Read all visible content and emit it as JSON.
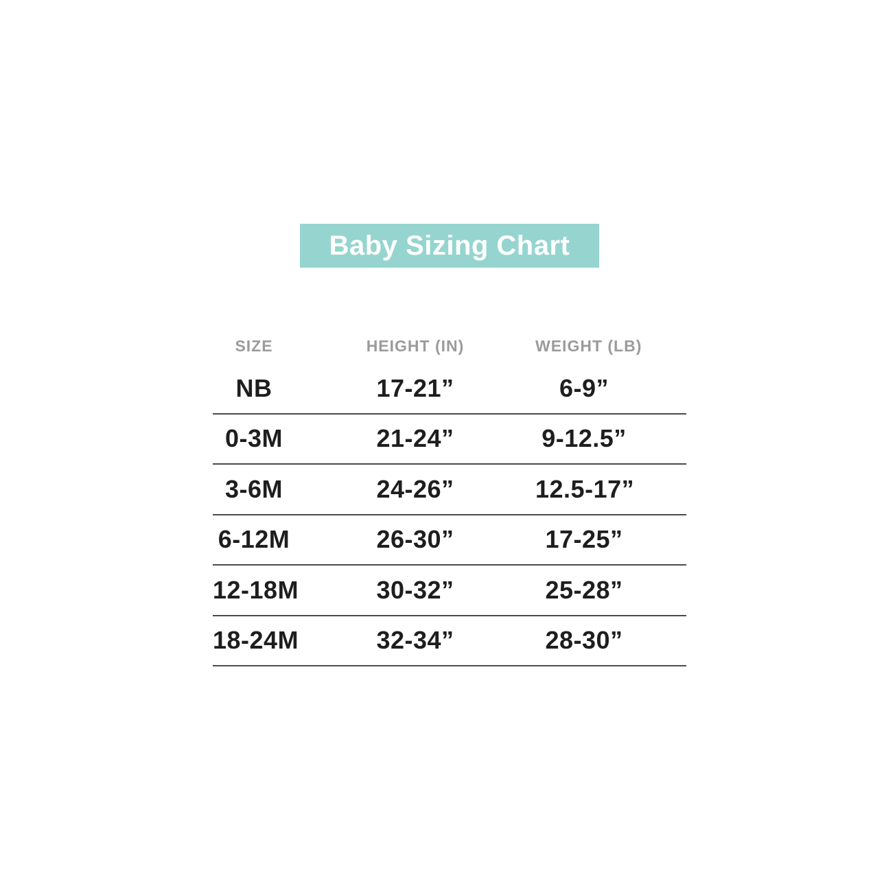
{
  "banner": {
    "label": "Baby Sizing Chart"
  },
  "colors": {
    "page_bg": "#ffffff",
    "banner_bg": "#96d5cf",
    "banner_text": "#ffffff",
    "header_text": "#9b9b9b",
    "cell_text": "#1e1e1e",
    "row_line": "#4a4a4a"
  },
  "chart_data": {
    "type": "table",
    "title": "Baby Sizing Chart",
    "columns": [
      "SIZE",
      "HEIGHT (IN)",
      "WEIGHT (LB)"
    ],
    "rows": [
      [
        "NB",
        "17-21”",
        "6-9”"
      ],
      [
        "0-3M",
        "21-24”",
        "9-12.5”"
      ],
      [
        "3-6M",
        "24-26”",
        "12.5-17”"
      ],
      [
        "6-12M",
        "26-30”",
        "17-25”"
      ],
      [
        "12-18M",
        "30-32”",
        "25-28”"
      ],
      [
        "18-24M",
        "32-34”",
        "28-30”"
      ]
    ]
  }
}
